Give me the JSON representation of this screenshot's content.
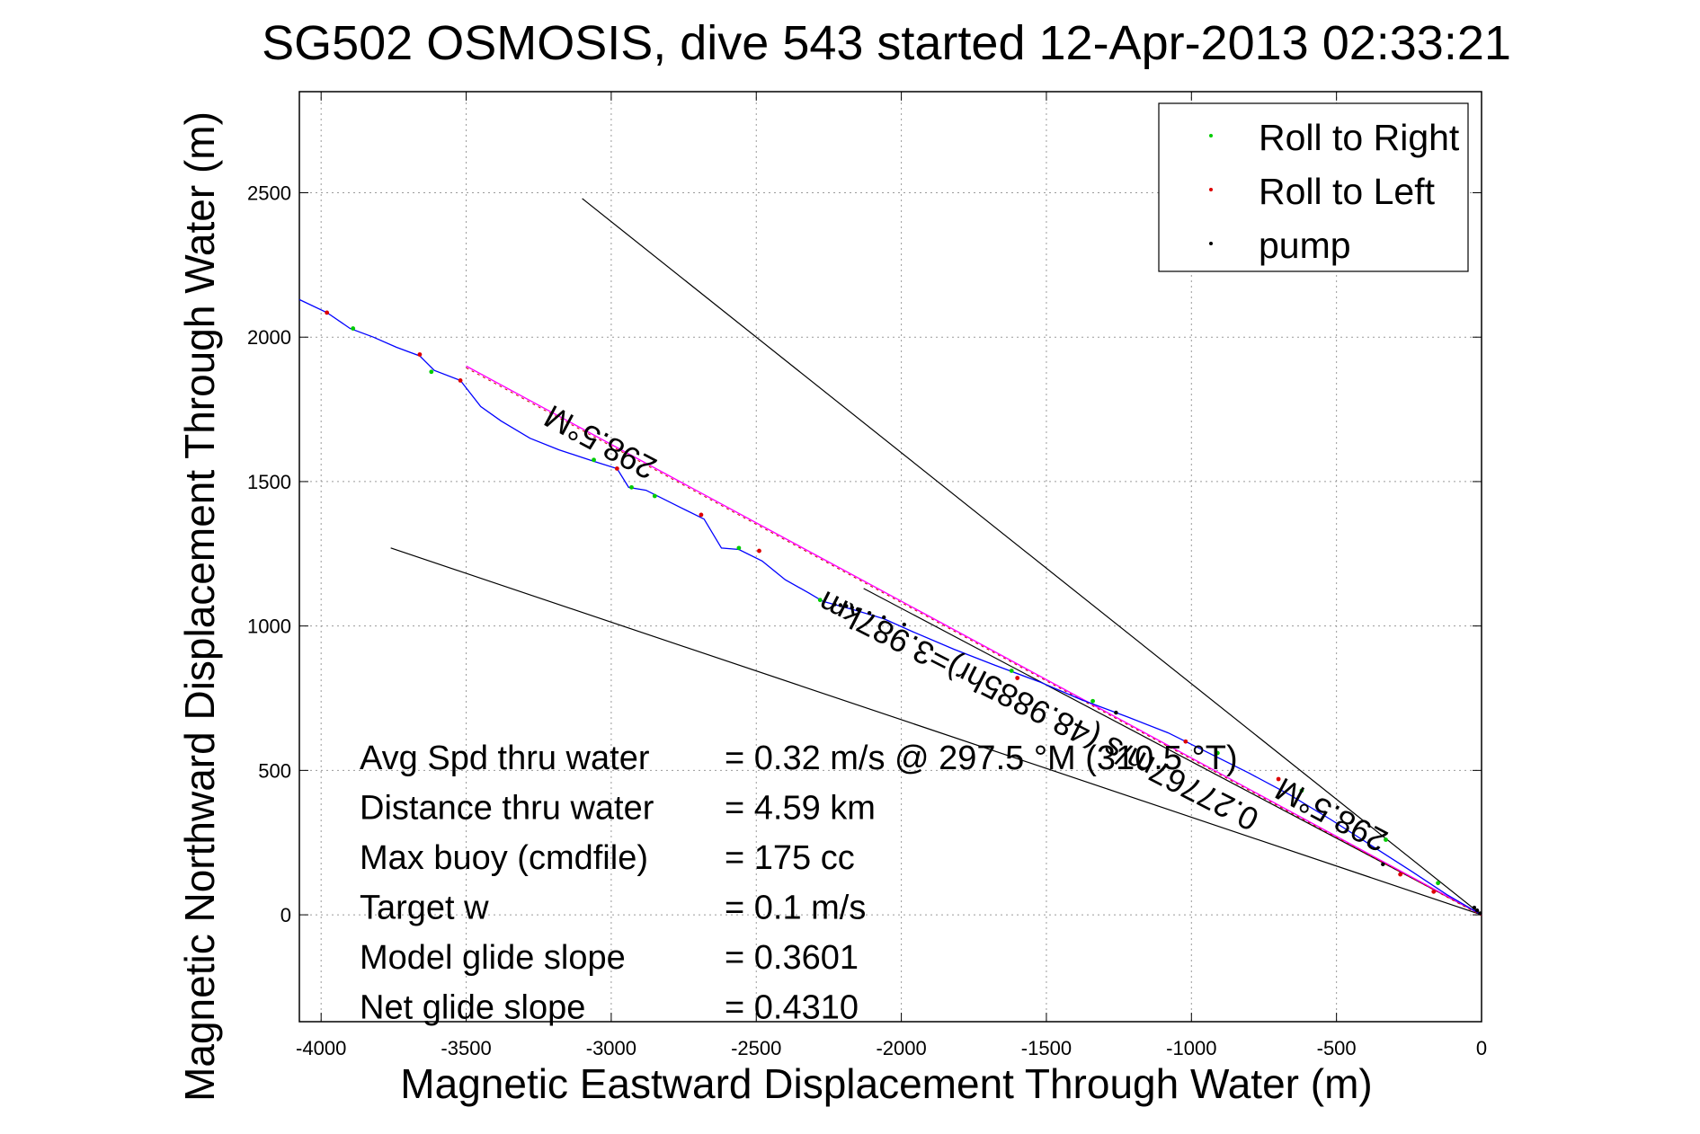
{
  "chart_data": {
    "type": "line",
    "title": "SG502 OSMOSIS, dive 543 started 12-Apr-2013 02:33:21",
    "xlabel": "Magnetic Eastward Displacement Through Water (m)",
    "ylabel": "Magnetic Northward Displacement Through Water (m)",
    "xlim": [
      -4075,
      0
    ],
    "ylim": [
      -370,
      2850
    ],
    "x_ticks": [
      -4000,
      -3500,
      -3000,
      -2500,
      -2000,
      -1500,
      -1000,
      -500,
      0
    ],
    "y_ticks": [
      0,
      500,
      1000,
      1500,
      2000,
      2500
    ],
    "grid": true,
    "legend": {
      "placement": "top-right",
      "entries": [
        {
          "label": "Roll to Right",
          "color": "#00cc00"
        },
        {
          "label": "Roll to Left",
          "color": "#dd0000"
        },
        {
          "label": "pump",
          "color": "#000000"
        }
      ]
    },
    "track": {
      "color": "#0000ff",
      "x": [
        -4075,
        -3980,
        -3900,
        -3820,
        -3740,
        -3660,
        -3610,
        -3520,
        -3450,
        -3380,
        -3280,
        -3180,
        -3060,
        -2980,
        -2940,
        -2880,
        -2760,
        -2680,
        -2620,
        -2560,
        -2480,
        -2400,
        -2320,
        -2270,
        -2160,
        -2060,
        -1960,
        -1820,
        -1680,
        -1520,
        -1380,
        -1220,
        -1080,
        -940,
        -800,
        -660,
        -520,
        -380,
        -240,
        -120,
        0
      ],
      "y": [
        2130,
        2085,
        2030,
        2000,
        1965,
        1935,
        1885,
        1850,
        1760,
        1710,
        1650,
        1610,
        1570,
        1545,
        1480,
        1470,
        1410,
        1370,
        1270,
        1265,
        1225,
        1160,
        1115,
        1085,
        1055,
        1025,
        980,
        920,
        865,
        805,
        745,
        685,
        630,
        560,
        490,
        415,
        330,
        240,
        150,
        70,
        0
      ]
    },
    "roll_right": {
      "x": [
        -3890,
        -3620,
        -3060,
        -2930,
        -2850,
        -2560,
        -2280,
        -1620,
        -1340,
        -910,
        -620,
        -330,
        -150
      ],
      "y": [
        2030,
        1880,
        1575,
        1480,
        1450,
        1270,
        1090,
        845,
        740,
        560,
        430,
        260,
        110
      ]
    },
    "roll_left": {
      "x": [
        -3980,
        -3660,
        -3520,
        -2980,
        -2690,
        -2490,
        -1600,
        -1020,
        -700,
        -280,
        -165
      ],
      "y": [
        2085,
        1940,
        1850,
        1545,
        1385,
        1260,
        820,
        600,
        470,
        140,
        80
      ]
    },
    "pump": {
      "x": [
        -2230,
        -2210,
        -2190,
        -2170,
        -2150,
        -2110,
        -2060,
        -1990,
        -1260,
        -340,
        -25,
        -15,
        -5
      ],
      "y": [
        1075,
        1072,
        1069,
        1064,
        1058,
        1045,
        1030,
        1005,
        700,
        175,
        25,
        15,
        5
      ]
    },
    "heading_line": {
      "color": "#ff00ff",
      "x": [
        -3500,
        0
      ],
      "y": [
        1900,
        0
      ]
    },
    "reference_lines": [
      {
        "color": "#000000",
        "x": [
          -3100,
          0
        ],
        "y": [
          2480,
          0
        ]
      },
      {
        "color": "#000000",
        "x": [
          -3760,
          0
        ],
        "y": [
          1270,
          0
        ]
      },
      {
        "color": "#000000",
        "x": [
          -2130,
          0
        ],
        "y": [
          1130,
          0
        ]
      }
    ],
    "annotations": [
      {
        "text": "298.5°M",
        "x": -3020,
        "y": 1670,
        "angle": 208
      },
      {
        "text": "298.5°M",
        "x": -500,
        "y": 380,
        "angle": 208
      },
      {
        "text": "0.27767m/s (48.9885hr)=3.987km",
        "x": -1510,
        "y": 740,
        "angle": 207
      }
    ],
    "stats": [
      {
        "label": "Avg Spd thru water",
        "value": "=  0.32 m/s @ 297.5 °M (310.5 °T)"
      },
      {
        "label": "Distance thru water",
        "value": "=  4.59 km"
      },
      {
        "label": "Max buoy (cmdfile)",
        "value": "= 175 cc"
      },
      {
        "label": "Target w",
        "value": "= 0.1 m/s"
      },
      {
        "label": "Model glide slope",
        "value": "= 0.3601"
      },
      {
        "label": "Net glide slope",
        "value": "= 0.4310"
      }
    ]
  }
}
